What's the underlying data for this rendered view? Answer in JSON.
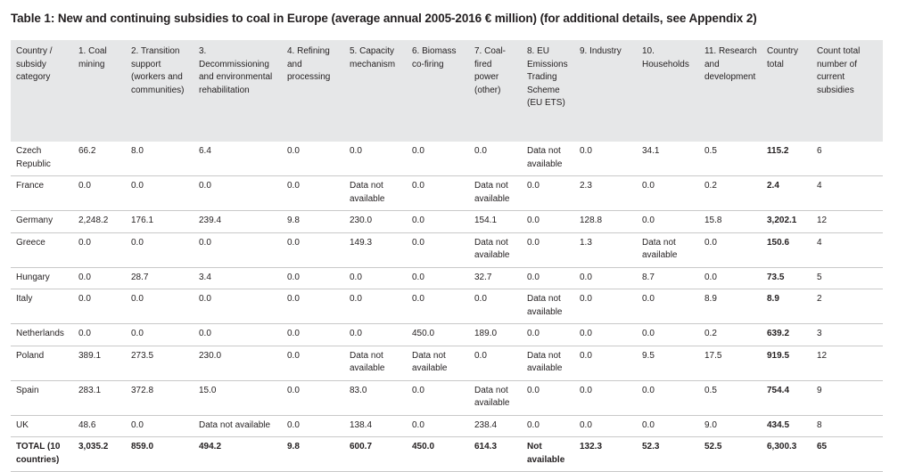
{
  "title": "Table 1: New and continuing subsidies to coal in Europe (average annual 2005-2016 € million) (for additional details, see Appendix 2)",
  "table": {
    "headers": [
      "Country / subsidy category",
      "1. Coal mining",
      "2. Transition support (workers and communities)",
      "3. Decommissioning and environmental rehabilitation",
      "4. Refining and processing",
      "5. Capacity mechanism",
      "6. Biomass co-firing",
      "7. Coal-fired power (other)",
      "8. EU Emissions Trading Scheme (EU ETS)",
      "9. Industry",
      "10. Households",
      "11. Research and development",
      "Country total",
      "Count total number of current subsidies"
    ],
    "rows": [
      [
        "Czech Republic",
        "66.2",
        "8.0",
        "6.4",
        "0.0",
        "0.0",
        "0.0",
        "0.0",
        "Data not available",
        "0.0",
        "34.1",
        "0.5",
        "115.2",
        "6"
      ],
      [
        "France",
        "0.0",
        "0.0",
        "0.0",
        "0.0",
        "Data not available",
        "0.0",
        "Data not available",
        "0.0",
        "2.3",
        "0.0",
        "0.2",
        "2.4",
        "4"
      ],
      [
        "Germany",
        "2,248.2",
        "176.1",
        "239.4",
        "9.8",
        "230.0",
        "0.0",
        "154.1",
        "0.0",
        "128.8",
        "0.0",
        "15.8",
        "3,202.1",
        "12"
      ],
      [
        "Greece",
        "0.0",
        "0.0",
        "0.0",
        "0.0",
        "149.3",
        "0.0",
        "Data not available",
        "0.0",
        "1.3",
        "Data not available",
        "0.0",
        "150.6",
        "4"
      ],
      [
        "Hungary",
        "0.0",
        "28.7",
        "3.4",
        "0.0",
        "0.0",
        "0.0",
        "32.7",
        "0.0",
        "0.0",
        "8.7",
        "0.0",
        "73.5",
        "5"
      ],
      [
        "Italy",
        "0.0",
        "0.0",
        "0.0",
        "0.0",
        "0.0",
        "0.0",
        "0.0",
        "Data not available",
        "0.0",
        "0.0",
        "8.9",
        "8.9",
        "2"
      ],
      [
        "Netherlands",
        "0.0",
        "0.0",
        "0.0",
        "0.0",
        "0.0",
        "450.0",
        "189.0",
        "0.0",
        "0.0",
        "0.0",
        "0.2",
        "639.2",
        "3"
      ],
      [
        "Poland",
        "389.1",
        "273.5",
        "230.0",
        "0.0",
        "Data not available",
        "Data not available",
        "0.0",
        "Data not available",
        "0.0",
        "9.5",
        "17.5",
        "919.5",
        "12"
      ],
      [
        "Spain",
        "283.1",
        "372.8",
        "15.0",
        "0.0",
        "83.0",
        "0.0",
        "Data not available",
        "0.0",
        "0.0",
        "0.0",
        "0.5",
        "754.4",
        "9"
      ],
      [
        "UK",
        "48.6",
        "0.0",
        "Data not available",
        "0.0",
        "138.4",
        "0.0",
        "238.4",
        "0.0",
        "0.0",
        "0.0",
        "9.0",
        "434.5",
        "8"
      ]
    ],
    "total_row": [
      "TOTAL (10 countries)",
      "3,035.2",
      "859.0",
      "494.2",
      "9.8",
      "600.7",
      "450.0",
      "614.3",
      "Not available",
      "132.3",
      "52.3",
      "52.5",
      "6,300.3",
      "65"
    ]
  }
}
